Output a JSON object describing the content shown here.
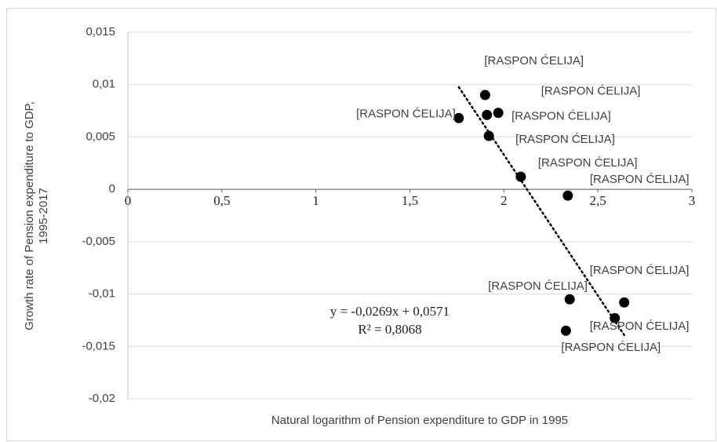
{
  "chart_data": {
    "type": "scatter",
    "xlabel": "Natural logarithm of Pension expenditure to GDP in 1995",
    "ylabel": [
      "Growth rate of Pension expenditure to GDP,",
      "1995-2017"
    ],
    "x": [
      1.76,
      1.9,
      1.91,
      1.97,
      1.92,
      2.09,
      2.34,
      2.35,
      2.64,
      2.59,
      2.33
    ],
    "values": [
      0.0068,
      0.009,
      0.0071,
      0.0073,
      0.0051,
      0.0012,
      -0.0006,
      -0.0105,
      -0.0108,
      -0.0123,
      -0.0135
    ],
    "point_labels": [
      "[RASPON ĆELIJA]",
      "[RASPON ĆELIJA]",
      "[RASPON ĆELIJA]",
      "[RASPON ĆELIJA]",
      "[RASPON ĆELIJA]",
      "[RASPON ĆELIJA]",
      "[RASPON ĆELIJA]",
      "[RASPON ĆELIJA]",
      "[RASPON ĆELIJA]",
      "[RASPON ĆELIJA]",
      "[RASPON ĆELIJA]"
    ],
    "color": "#000000",
    "trendline": {
      "slope": -0.0269,
      "intercept": 0.0571,
      "equation": "y = -0,0269x + 0,0571",
      "r2": {
        "value": 0.8068,
        "label": "R² = 0,8068"
      }
    },
    "xlim": [
      0,
      3
    ],
    "xticks": [
      0,
      {
        "value": 0.5,
        "label": "0,5"
      },
      1,
      {
        "value": 1.5,
        "label": "1,5"
      },
      2,
      {
        "value": 2.5,
        "label": "2,5"
      },
      3
    ],
    "ylim": [
      -0.02,
      0.015
    ],
    "yticks": [
      {
        "value": 0.015,
        "label": "0,015"
      },
      {
        "value": 0.01,
        "label": "0,01"
      },
      {
        "value": 0.005,
        "label": "0,005"
      },
      0,
      {
        "value": -0.005,
        "label": "-0,005"
      },
      {
        "value": -0.01,
        "label": "-0,01"
      },
      {
        "value": -0.015,
        "label": "-0,015"
      },
      {
        "value": -0.02,
        "label": "-0,02"
      }
    ],
    "grid": true
  }
}
